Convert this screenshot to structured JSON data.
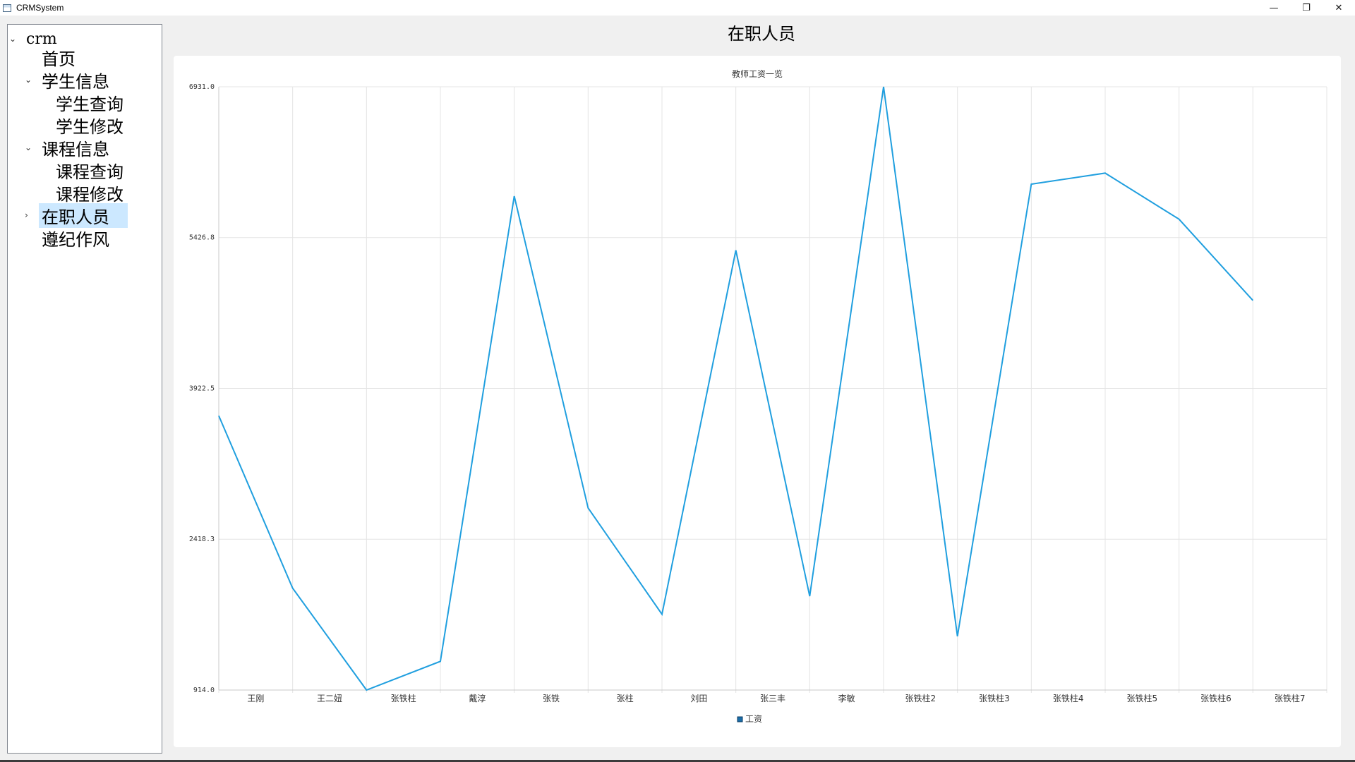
{
  "window": {
    "title": "CRMSystem",
    "controls": {
      "minimize": "—",
      "restore": "❐",
      "close": "✕"
    }
  },
  "tree": {
    "root": {
      "label": "crm",
      "arrow": "⌄"
    },
    "items": [
      {
        "label": "首页",
        "arrow": ""
      },
      {
        "label": "学生信息",
        "arrow": "⌄"
      },
      {
        "label": "学生查询",
        "arrow": ""
      },
      {
        "label": "学生修改",
        "arrow": ""
      },
      {
        "label": "课程信息",
        "arrow": "⌄"
      },
      {
        "label": "课程查询",
        "arrow": ""
      },
      {
        "label": "课程修改",
        "arrow": ""
      },
      {
        "label": "在职人员",
        "arrow": "›",
        "selected": true
      },
      {
        "label": "遵纪作风",
        "arrow": ""
      }
    ]
  },
  "page": {
    "title": "在职人员"
  },
  "colors": {
    "series": "#209fdf",
    "grid": "#e4e4e4",
    "selection": "#cce8ff"
  },
  "chart_data": {
    "type": "line",
    "title": "教师工资一览",
    "categories": [
      "王刚",
      "王二妞",
      "张铁柱",
      "戴淳",
      "张铁",
      "张柱",
      "刘田",
      "张三丰",
      "李敏",
      "张铁柱2",
      "张铁柱3",
      "张铁柱4",
      "张铁柱5",
      "张铁柱6",
      "张铁柱7"
    ],
    "series": [
      {
        "name": "工资",
        "values": [
          3650,
          1930,
          914,
          1200,
          5840,
          2730,
          1670,
          5300,
          1850,
          6931,
          1450,
          5960,
          6070,
          5610,
          4800
        ]
      }
    ],
    "ylim": [
      914.0,
      6931.0
    ],
    "yticks": [
      "914.0",
      "2418.3",
      "3922.5",
      "5426.8",
      "6931.0"
    ],
    "grid": true,
    "legend": "bottom"
  }
}
